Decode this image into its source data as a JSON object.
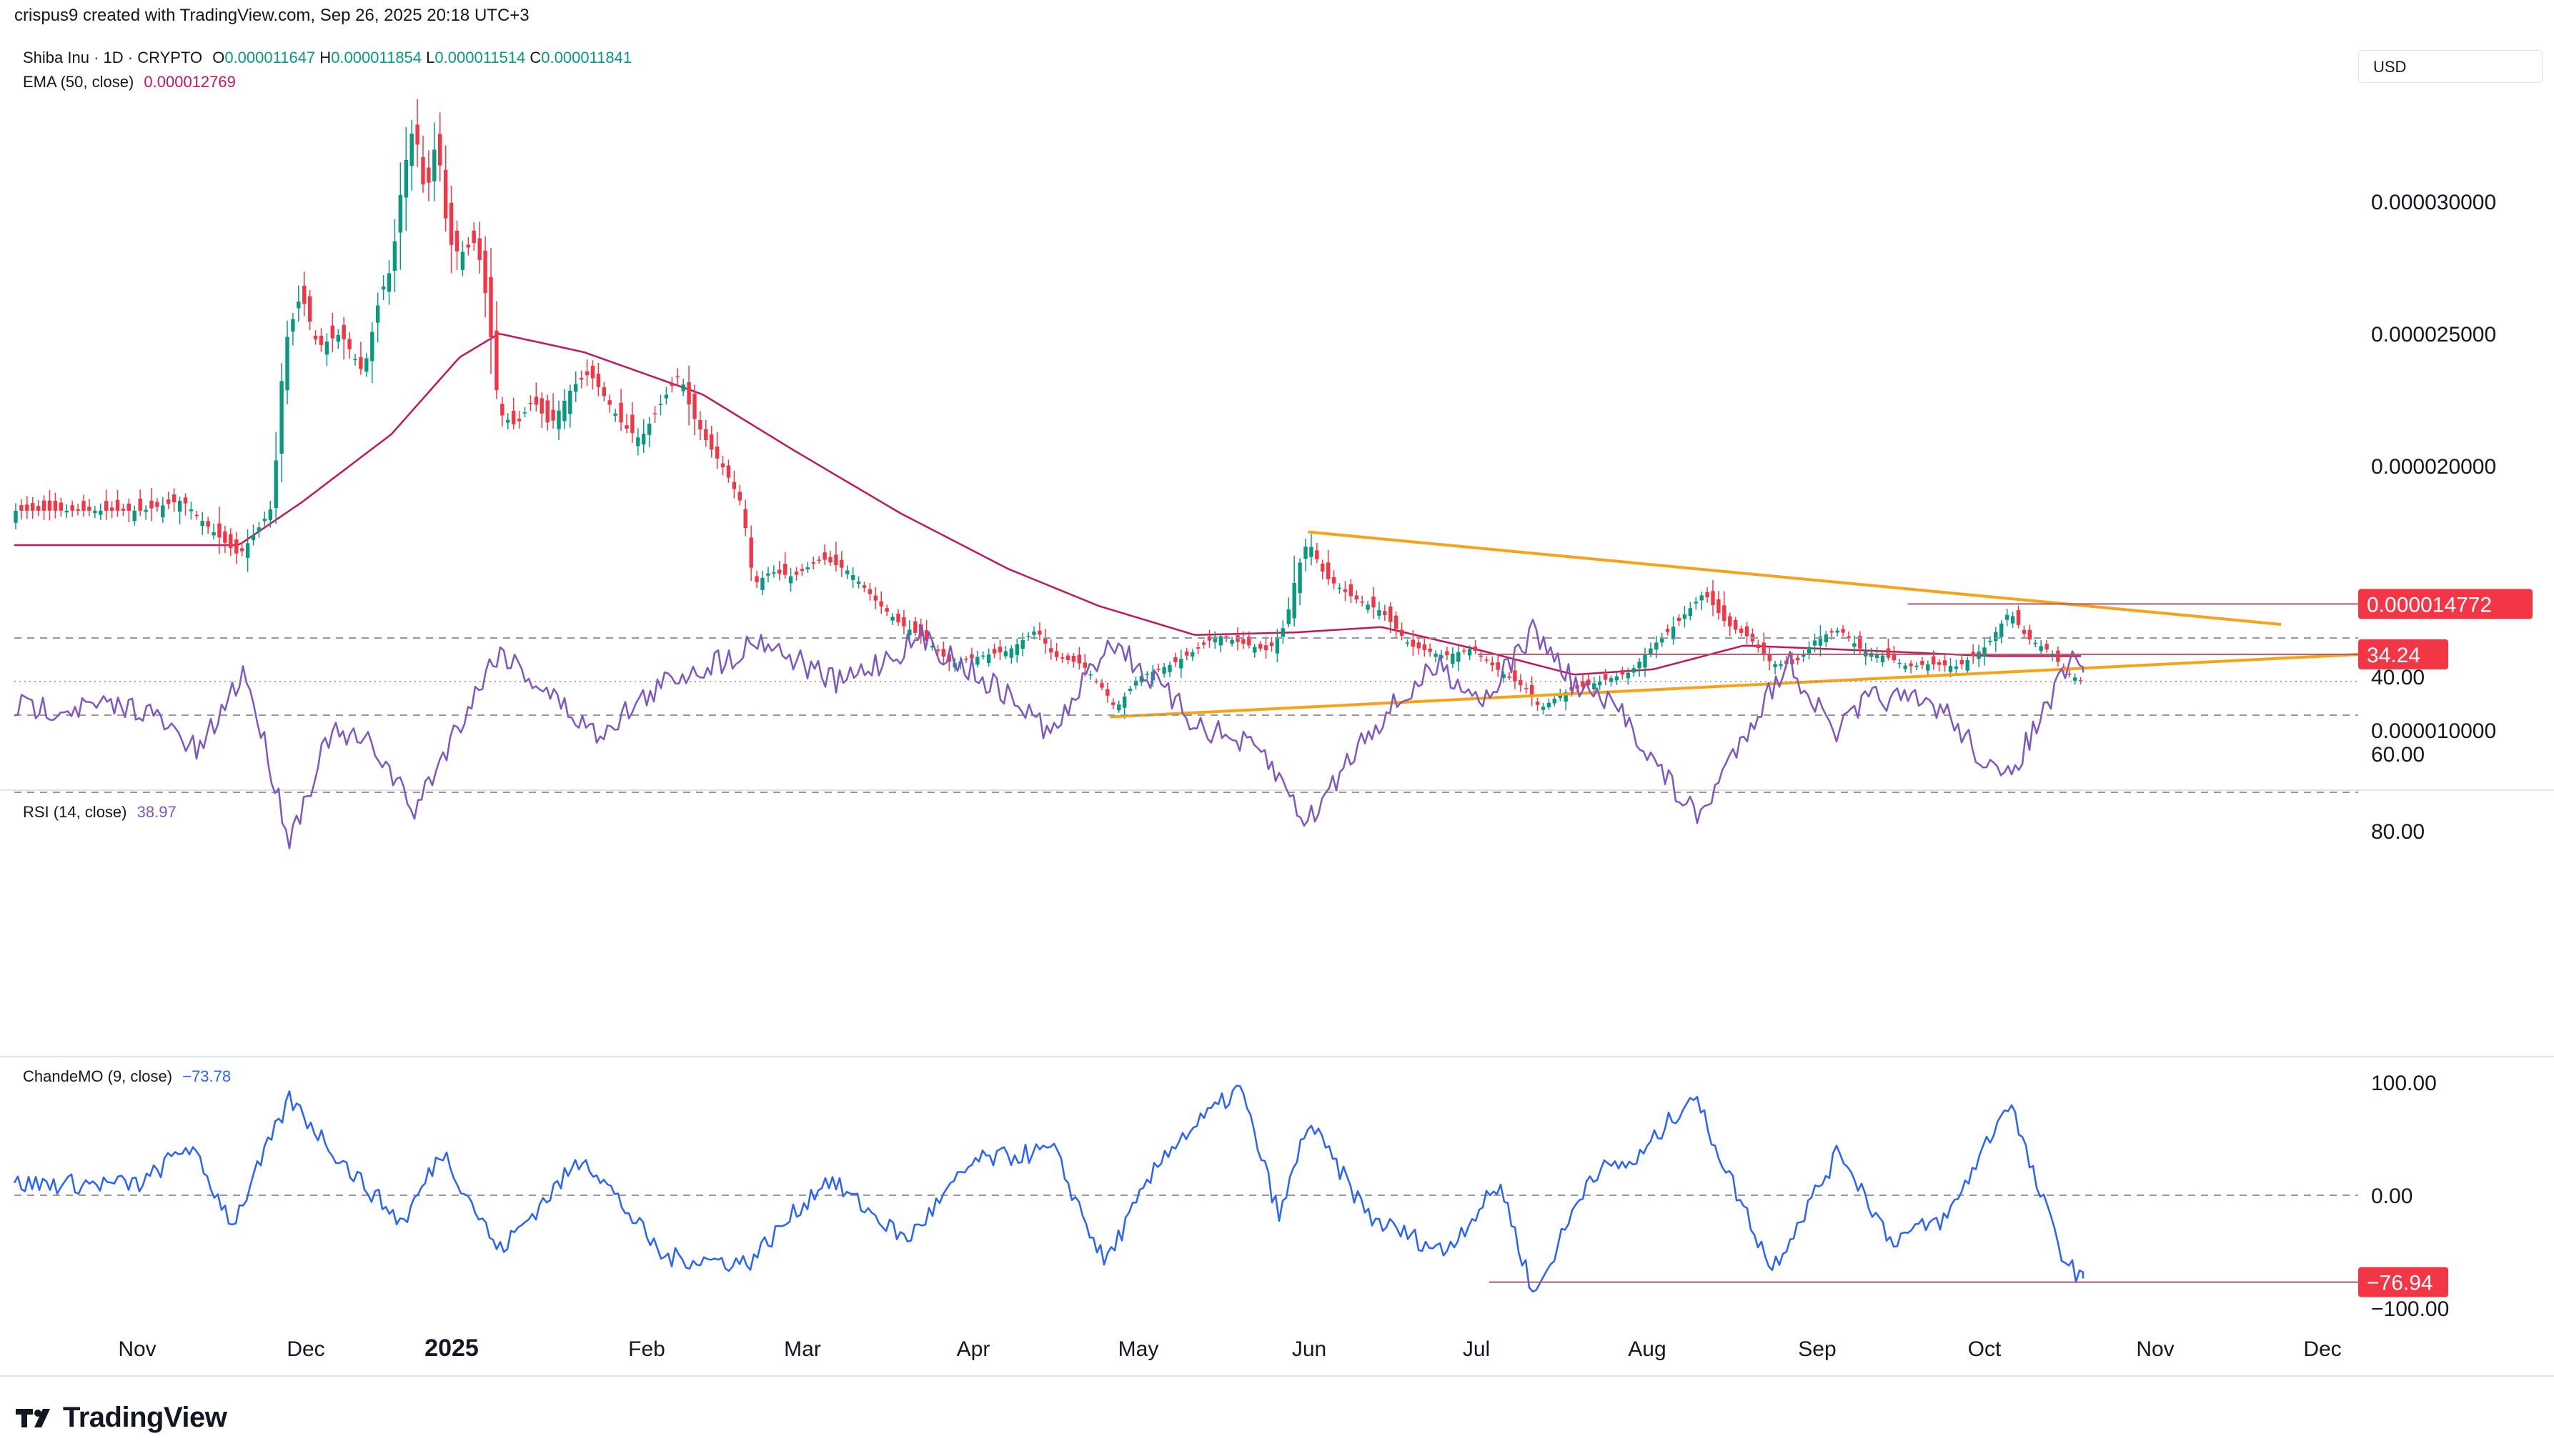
{
  "header": {
    "credit": "crispus9 created with TradingView.com, Sep 26, 2025 20:18 UTC+3",
    "currency": "USD"
  },
  "legend": {
    "symbol": "Shiba Inu · 1D · CRYPTO",
    "o_label": "O",
    "o": "0.000011647",
    "h_label": "H",
    "h": "0.000011854",
    "l_label": "L",
    "l": "0.000011514",
    "c_label": "C",
    "c": "0.000011841",
    "ema_label": "EMA (50, close)",
    "ema_value": "0.000012769",
    "rsi_label": "RSI (14, close)",
    "rsi_value": "38.97",
    "cmo_label": "ChandeMO (9, close)",
    "cmo_value": "−73.78"
  },
  "brand": {
    "name": "TradingView"
  },
  "colors": {
    "up": "#089981",
    "down": "#f23645",
    "ema": "#c2185b",
    "triangle": "#f7a21b",
    "rsi": "#7e57c2",
    "cmo": "#2962ff",
    "marker": "#f23645",
    "grid": "#e0e3eb",
    "level_line": "#ab5b6e"
  },
  "chart_data": [
    {
      "type": "candlestick",
      "title": "Shiba Inu · 1D · CRYPTO",
      "x_tick_labels": [
        "Nov",
        "Dec",
        "2025",
        "Feb",
        "Mar",
        "Apr",
        "May",
        "Jun",
        "Jul",
        "Aug",
        "Sep",
        "Oct",
        "Nov",
        "Dec"
      ],
      "y_tick_labels": [
        "0.000030000",
        "0.000025000",
        "0.000020000",
        "0.000010000"
      ],
      "ylim": [
        8.4e-06,
        3.4e-05
      ],
      "close_path": [
        [
          "2024-10-18",
          1.83e-05
        ],
        [
          "2024-10-25",
          1.87e-05
        ],
        [
          "2024-10-30",
          1.76e-05
        ],
        [
          "2024-11-04",
          1.66e-05
        ],
        [
          "2024-11-08",
          1.78e-05
        ],
        [
          "2024-11-10",
          1.85e-05
        ],
        [
          "2024-11-12",
          2.45e-05
        ],
        [
          "2024-11-15",
          2.65e-05
        ],
        [
          "2024-11-18",
          2.45e-05
        ],
        [
          "2024-11-22",
          2.5e-05
        ],
        [
          "2024-11-26",
          2.35e-05
        ],
        [
          "2024-11-29",
          2.65e-05
        ],
        [
          "2024-12-01",
          2.75e-05
        ],
        [
          "2024-12-03",
          3.1e-05
        ],
        [
          "2024-12-05",
          3.3e-05
        ],
        [
          "2024-12-07",
          3e-05
        ],
        [
          "2024-12-09",
          3.25e-05
        ],
        [
          "2024-12-11",
          2.85e-05
        ],
        [
          "2024-12-13",
          2.8e-05
        ],
        [
          "2024-12-16",
          2.85e-05
        ],
        [
          "2024-12-18",
          2.6e-05
        ],
        [
          "2024-12-20",
          2.2e-05
        ],
        [
          "2024-12-23",
          2.15e-05
        ],
        [
          "2024-12-26",
          2.25e-05
        ],
        [
          "2024-12-29",
          2.15e-05
        ],
        [
          "2025-01-02",
          2.3e-05
        ],
        [
          "2025-01-05",
          2.35e-05
        ],
        [
          "2025-01-08",
          2.25e-05
        ],
        [
          "2025-01-11",
          2.15e-05
        ],
        [
          "2025-01-14",
          2.1e-05
        ],
        [
          "2025-01-18",
          2.25e-05
        ],
        [
          "2025-01-21",
          2.35e-05
        ],
        [
          "2025-01-23",
          2.2e-05
        ],
        [
          "2025-01-26",
          2.08e-05
        ],
        [
          "2025-01-29",
          1.98e-05
        ],
        [
          "2025-02-01",
          1.85e-05
        ],
        [
          "2025-02-03",
          1.55e-05
        ],
        [
          "2025-02-06",
          1.6e-05
        ],
        [
          "2025-02-10",
          1.58e-05
        ],
        [
          "2025-02-15",
          1.65e-05
        ],
        [
          "2025-02-20",
          1.6e-05
        ],
        [
          "2025-02-25",
          1.48e-05
        ],
        [
          "2025-03-01",
          1.4e-05
        ],
        [
          "2025-03-05",
          1.35e-05
        ],
        [
          "2025-03-10",
          1.25e-05
        ],
        [
          "2025-03-15",
          1.28e-05
        ],
        [
          "2025-03-20",
          1.3e-05
        ],
        [
          "2025-03-25",
          1.38e-05
        ],
        [
          "2025-03-28",
          1.28e-05
        ],
        [
          "2025-04-02",
          1.25e-05
        ],
        [
          "2025-04-06",
          1.15e-05
        ],
        [
          "2025-04-08",
          1.08e-05
        ],
        [
          "2025-04-12",
          1.2e-05
        ],
        [
          "2025-04-18",
          1.25e-05
        ],
        [
          "2025-04-22",
          1.3e-05
        ],
        [
          "2025-04-26",
          1.36e-05
        ],
        [
          "2025-04-30",
          1.33e-05
        ],
        [
          "2025-05-05",
          1.3e-05
        ],
        [
          "2025-05-08",
          1.4e-05
        ],
        [
          "2025-05-10",
          1.6e-05
        ],
        [
          "2025-05-12",
          1.72e-05
        ],
        [
          "2025-05-15",
          1.58e-05
        ],
        [
          "2025-05-20",
          1.5e-05
        ],
        [
          "2025-05-25",
          1.45e-05
        ],
        [
          "2025-05-30",
          1.32e-05
        ],
        [
          "2025-06-05",
          1.28e-05
        ],
        [
          "2025-06-10",
          1.31e-05
        ],
        [
          "2025-06-15",
          1.22e-05
        ],
        [
          "2025-06-20",
          1.15e-05
        ],
        [
          "2025-06-22",
          1.08e-05
        ],
        [
          "2025-06-26",
          1.14e-05
        ],
        [
          "2025-07-02",
          1.18e-05
        ],
        [
          "2025-07-08",
          1.22e-05
        ],
        [
          "2025-07-12",
          1.32e-05
        ],
        [
          "2025-07-16",
          1.4e-05
        ],
        [
          "2025-07-21",
          1.52e-05
        ],
        [
          "2025-07-25",
          1.4e-05
        ],
        [
          "2025-07-29",
          1.35e-05
        ],
        [
          "2025-08-02",
          1.25e-05
        ],
        [
          "2025-08-06",
          1.25e-05
        ],
        [
          "2025-08-10",
          1.35e-05
        ],
        [
          "2025-08-14",
          1.38e-05
        ],
        [
          "2025-08-18",
          1.3e-05
        ],
        [
          "2025-08-22",
          1.28e-05
        ],
        [
          "2025-08-26",
          1.24e-05
        ],
        [
          "2025-08-30",
          1.25e-05
        ],
        [
          "2025-09-04",
          1.24e-05
        ],
        [
          "2025-09-09",
          1.32e-05
        ],
        [
          "2025-09-13",
          1.45e-05
        ],
        [
          "2025-09-16",
          1.35e-05
        ],
        [
          "2025-09-20",
          1.3e-05
        ],
        [
          "2025-09-23",
          1.22e-05
        ],
        [
          "2025-09-26",
          1.18e-05
        ]
      ],
      "ema_path": [
        [
          "2024-10-18",
          1.7e-05
        ],
        [
          "2024-11-04",
          1.7e-05
        ],
        [
          "2024-11-15",
          1.86e-05
        ],
        [
          "2024-12-01",
          2.12e-05
        ],
        [
          "2024-12-13",
          2.41e-05
        ],
        [
          "2024-12-20",
          2.5e-05
        ],
        [
          "2025-01-04",
          2.43e-05
        ],
        [
          "2025-01-25",
          2.27e-05
        ],
        [
          "2025-02-10",
          2.06e-05
        ],
        [
          "2025-03-01",
          1.82e-05
        ],
        [
          "2025-03-20",
          1.61e-05
        ],
        [
          "2025-04-05",
          1.47e-05
        ],
        [
          "2025-04-22",
          1.36e-05
        ],
        [
          "2025-05-10",
          1.37e-05
        ],
        [
          "2025-05-25",
          1.39e-05
        ],
        [
          "2025-06-10",
          1.31e-05
        ],
        [
          "2025-06-28",
          1.21e-05
        ],
        [
          "2025-07-12",
          1.23e-05
        ],
        [
          "2025-07-28",
          1.32e-05
        ],
        [
          "2025-08-20",
          1.3e-05
        ],
        [
          "2025-09-10",
          1.28e-05
        ],
        [
          "2025-09-26",
          1.28e-05
        ]
      ],
      "trendlines": [
        {
          "from": [
            "2025-05-12",
            1.75e-05
          ],
          "to": [
            "2025-10-31",
            1.4e-05
          ]
        },
        {
          "from": [
            "2025-04-07",
            1.05e-05
          ],
          "to": [
            "2025-11-17",
            1.29e-05
          ]
        }
      ],
      "horizontal_level": {
        "value": 1.4772e-05,
        "label": "0.000014772",
        "from": "2025-08-26"
      },
      "last_price_line": 1.1841e-05
    },
    {
      "type": "line",
      "title": "RSI (14, close)",
      "y_tick_labels": [
        "80.00",
        "60.00",
        "40.00"
      ],
      "ylim": [
        22,
        88
      ],
      "bands": [
        70,
        50,
        30
      ],
      "values": [
        [
          "2024-10-18",
          48
        ],
        [
          "2024-10-28",
          60
        ],
        [
          "2024-11-05",
          38
        ],
        [
          "2024-11-13",
          82
        ],
        [
          "2024-11-20",
          55
        ],
        [
          "2024-11-28",
          58
        ],
        [
          "2024-12-05",
          75
        ],
        [
          "2024-12-13",
          52
        ],
        [
          "2024-12-20",
          33
        ],
        [
          "2025-01-06",
          55
        ],
        [
          "2025-01-20",
          40
        ],
        [
          "2025-01-30",
          35
        ],
        [
          "2025-02-04",
          30
        ],
        [
          "2025-02-18",
          42
        ],
        [
          "2025-03-05",
          30
        ],
        [
          "2025-03-20",
          45
        ],
        [
          "2025-03-28",
          55
        ],
        [
          "2025-04-07",
          30
        ],
        [
          "2025-04-22",
          52
        ],
        [
          "2025-05-04",
          60
        ],
        [
          "2025-05-12",
          78
        ],
        [
          "2025-05-22",
          55
        ],
        [
          "2025-06-04",
          37
        ],
        [
          "2025-06-12",
          46
        ],
        [
          "2025-06-21",
          28
        ],
        [
          "2025-06-28",
          42
        ],
        [
          "2025-07-07",
          50
        ],
        [
          "2025-07-13",
          64
        ],
        [
          "2025-07-20",
          77
        ],
        [
          "2025-07-28",
          55
        ],
        [
          "2025-08-05",
          36
        ],
        [
          "2025-08-13",
          55
        ],
        [
          "2025-08-20",
          45
        ],
        [
          "2025-09-01",
          48
        ],
        [
          "2025-09-12",
          68
        ],
        [
          "2025-09-20",
          47
        ],
        [
          "2025-09-24",
          36
        ],
        [
          "2025-09-26",
          38.97
        ]
      ],
      "level_line": {
        "value": 34.24,
        "label": "34.24",
        "from": "2025-06-11"
      }
    },
    {
      "type": "line",
      "title": "ChandeMO (9, close)",
      "y_tick_labels": [
        "100.00",
        "0.00",
        "−100.00"
      ],
      "ylim": [
        -110,
        110
      ],
      "bands": [
        0
      ],
      "values": [
        [
          "2024-10-18",
          10
        ],
        [
          "2024-10-26",
          45
        ],
        [
          "2024-11-03",
          -25
        ],
        [
          "2024-11-13",
          85
        ],
        [
          "2024-11-24",
          20
        ],
        [
          "2024-12-03",
          -25
        ],
        [
          "2024-12-10",
          40
        ],
        [
          "2024-12-20",
          -50
        ],
        [
          "2025-01-04",
          35
        ],
        [
          "2025-01-18",
          -55
        ],
        [
          "2025-02-02",
          -60
        ],
        [
          "2025-02-16",
          15
        ],
        [
          "2025-03-02",
          -40
        ],
        [
          "2025-03-14",
          30
        ],
        [
          "2025-03-28",
          40
        ],
        [
          "2025-04-06",
          -60
        ],
        [
          "2025-04-17",
          40
        ],
        [
          "2025-04-30",
          95
        ],
        [
          "2025-05-07",
          -20
        ],
        [
          "2025-05-12",
          65
        ],
        [
          "2025-05-23",
          -20
        ],
        [
          "2025-06-05",
          -50
        ],
        [
          "2025-06-15",
          10
        ],
        [
          "2025-06-21",
          -90
        ],
        [
          "2025-07-01",
          20
        ],
        [
          "2025-07-09",
          30
        ],
        [
          "2025-07-19",
          90
        ],
        [
          "2025-07-27",
          0
        ],
        [
          "2025-08-02",
          -65
        ],
        [
          "2025-08-14",
          40
        ],
        [
          "2025-08-23",
          -40
        ],
        [
          "2025-09-02",
          -20
        ],
        [
          "2025-09-13",
          85
        ],
        [
          "2025-09-17",
          20
        ],
        [
          "2025-09-23",
          -60
        ],
        [
          "2025-09-26",
          -73.78
        ]
      ],
      "level_line": {
        "value": -76.94,
        "label": "−76.94",
        "from": "2025-06-13"
      }
    }
  ]
}
